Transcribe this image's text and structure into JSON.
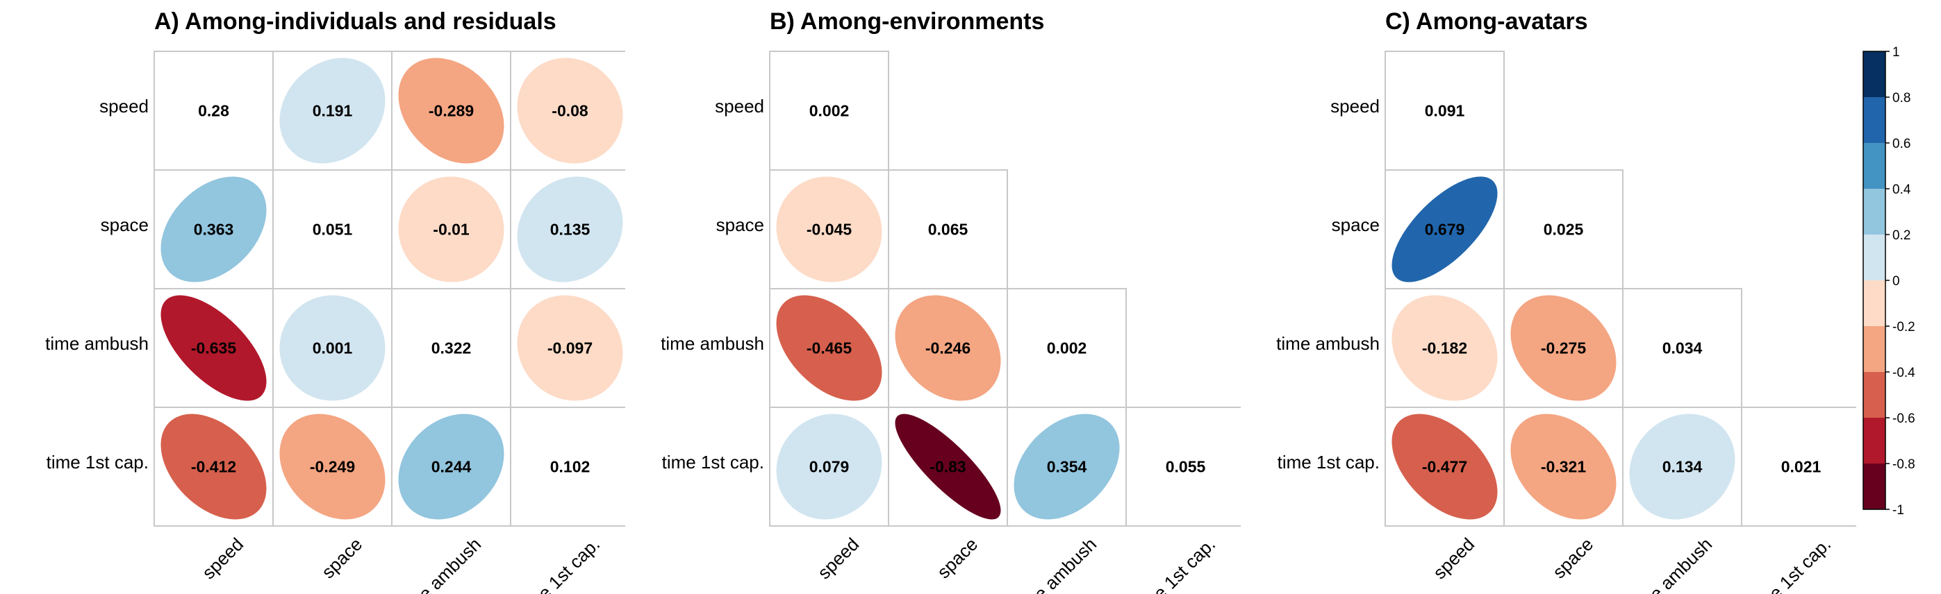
{
  "variables": [
    "speed",
    "space",
    "time ambush",
    "time 1st cap."
  ],
  "chart_data": [
    {
      "type": "heatmap",
      "title": "A) Among-individuals and residuals",
      "labels": [
        "speed",
        "space",
        "time ambush",
        "time 1st cap."
      ],
      "matrix": [
        [
          0.28,
          0.191,
          -0.289,
          -0.08
        ],
        [
          0.363,
          0.051,
          -0.01,
          0.135
        ],
        [
          -0.635,
          0.001,
          0.322,
          -0.097
        ],
        [
          -0.412,
          -0.249,
          0.244,
          0.102
        ]
      ],
      "shape": "full"
    },
    {
      "type": "heatmap",
      "title": "B) Among-environments",
      "labels": [
        "speed",
        "space",
        "time ambush",
        "time 1st cap."
      ],
      "matrix": [
        [
          0.002,
          null,
          null,
          null
        ],
        [
          -0.045,
          0.065,
          null,
          null
        ],
        [
          -0.465,
          -0.246,
          0.002,
          null
        ],
        [
          0.079,
          -0.83,
          0.354,
          0.055
        ]
      ],
      "shape": "lower"
    },
    {
      "type": "heatmap",
      "title": "C) Among-avatars",
      "labels": [
        "speed",
        "space",
        "time ambush",
        "time 1st cap."
      ],
      "matrix": [
        [
          0.091,
          null,
          null,
          null
        ],
        [
          0.679,
          0.025,
          null,
          null
        ],
        [
          -0.182,
          -0.275,
          0.034,
          null
        ],
        [
          -0.477,
          -0.321,
          0.134,
          0.021
        ]
      ],
      "shape": "lower"
    }
  ],
  "colorbar": {
    "range": [
      -1,
      1
    ],
    "tick_labels": [
      "1",
      "0.8",
      "0.6",
      "0.4",
      "0.2",
      "0",
      "-0.2",
      "-0.4",
      "-0.6",
      "-0.8",
      "-1"
    ],
    "bins_top_to_bottom": [
      "#053061",
      "#2166ac",
      "#4393c3",
      "#92c5de",
      "#d1e5f0",
      "#fddbc7",
      "#f4a582",
      "#d6604d",
      "#b2182b",
      "#67001f"
    ]
  }
}
